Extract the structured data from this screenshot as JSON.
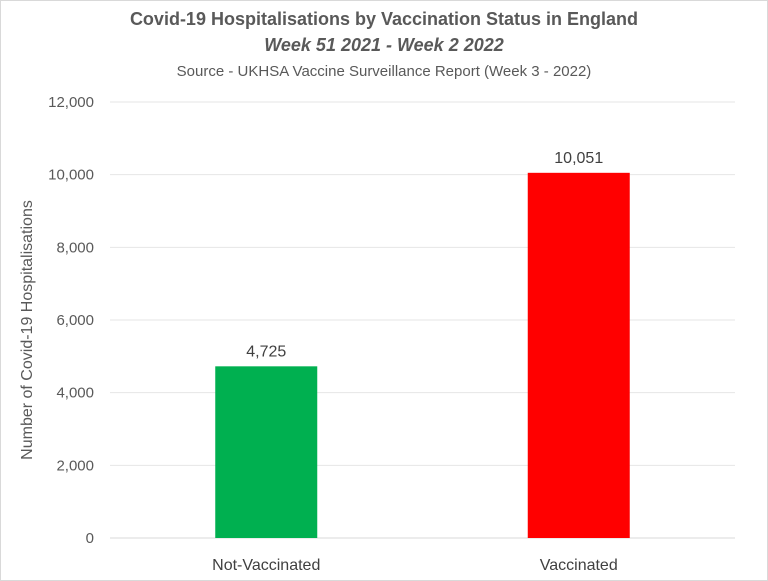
{
  "chart_data": {
    "type": "bar",
    "title": "Covid-19 Hospitalisations by Vaccination Status in England",
    "subtitle": "Week 51 2021 - Week 2 2022",
    "source": "Source - UKHSA Vaccine Surveillance Report (Week 3 - 2022)",
    "xlabel": "",
    "ylabel": "Number of Covid-19 Hospitalisations",
    "categories": [
      "Not-Vaccinated",
      "Vaccinated"
    ],
    "values": [
      4725,
      10051
    ],
    "data_labels": [
      "4,725",
      "10,051"
    ],
    "colors": [
      "#00b050",
      "#ff0000"
    ],
    "ylim": [
      0,
      12000
    ],
    "yticks": [
      0,
      2000,
      4000,
      6000,
      8000,
      10000,
      12000
    ],
    "ytick_labels": [
      "0",
      "2,000",
      "4,000",
      "6,000",
      "8,000",
      "10,000",
      "12,000"
    ],
    "grid": true,
    "legend": "none"
  }
}
